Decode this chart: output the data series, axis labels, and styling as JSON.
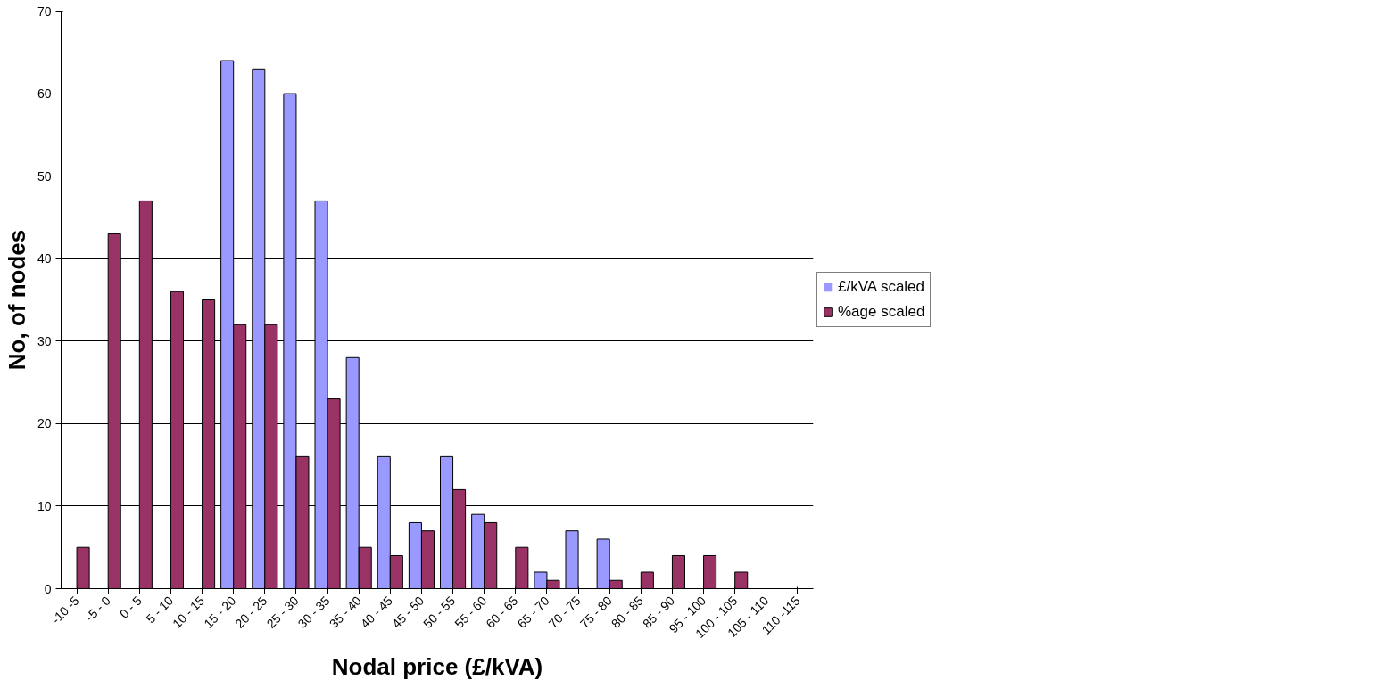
{
  "chart_data": {
    "type": "bar",
    "xlabel": "Nodal price (£/kVA)",
    "ylabel": "No, of nodes",
    "categories": [
      "-10 -5",
      "-5 - 0",
      "0 - 5",
      "5 - 10",
      "10 - 15",
      "15 - 20",
      "20 - 25",
      "25 - 30",
      "30 - 35",
      "35 - 40",
      "40 - 45",
      "45 - 50",
      "50 - 55",
      "55 - 60",
      "60 - 65",
      "65 - 70",
      "70 - 75",
      "75 - 80",
      "80 - 85",
      "85 - 90",
      "95 - 100",
      "100 - 105",
      "105 - 110",
      "110 -115"
    ],
    "series": [
      {
        "name": "£/kVA scaled",
        "color": "#9999ff",
        "values": [
          0,
          0,
          0,
          0,
          0,
          64,
          63,
          60,
          47,
          28,
          16,
          8,
          16,
          9,
          0,
          2,
          7,
          6,
          0,
          0,
          0,
          0,
          0,
          0
        ]
      },
      {
        "name": "%age scaled",
        "color": "#993366",
        "values": [
          5,
          43,
          47,
          36,
          35,
          32,
          32,
          16,
          23,
          5,
          4,
          7,
          12,
          8,
          5,
          1,
          0,
          1,
          2,
          4,
          4,
          2,
          0,
          0
        ]
      }
    ],
    "ylim": [
      0,
      70
    ],
    "yticks": [
      0,
      10,
      20,
      30,
      40,
      50,
      60,
      70
    ],
    "grid": "y",
    "legend": "right"
  }
}
